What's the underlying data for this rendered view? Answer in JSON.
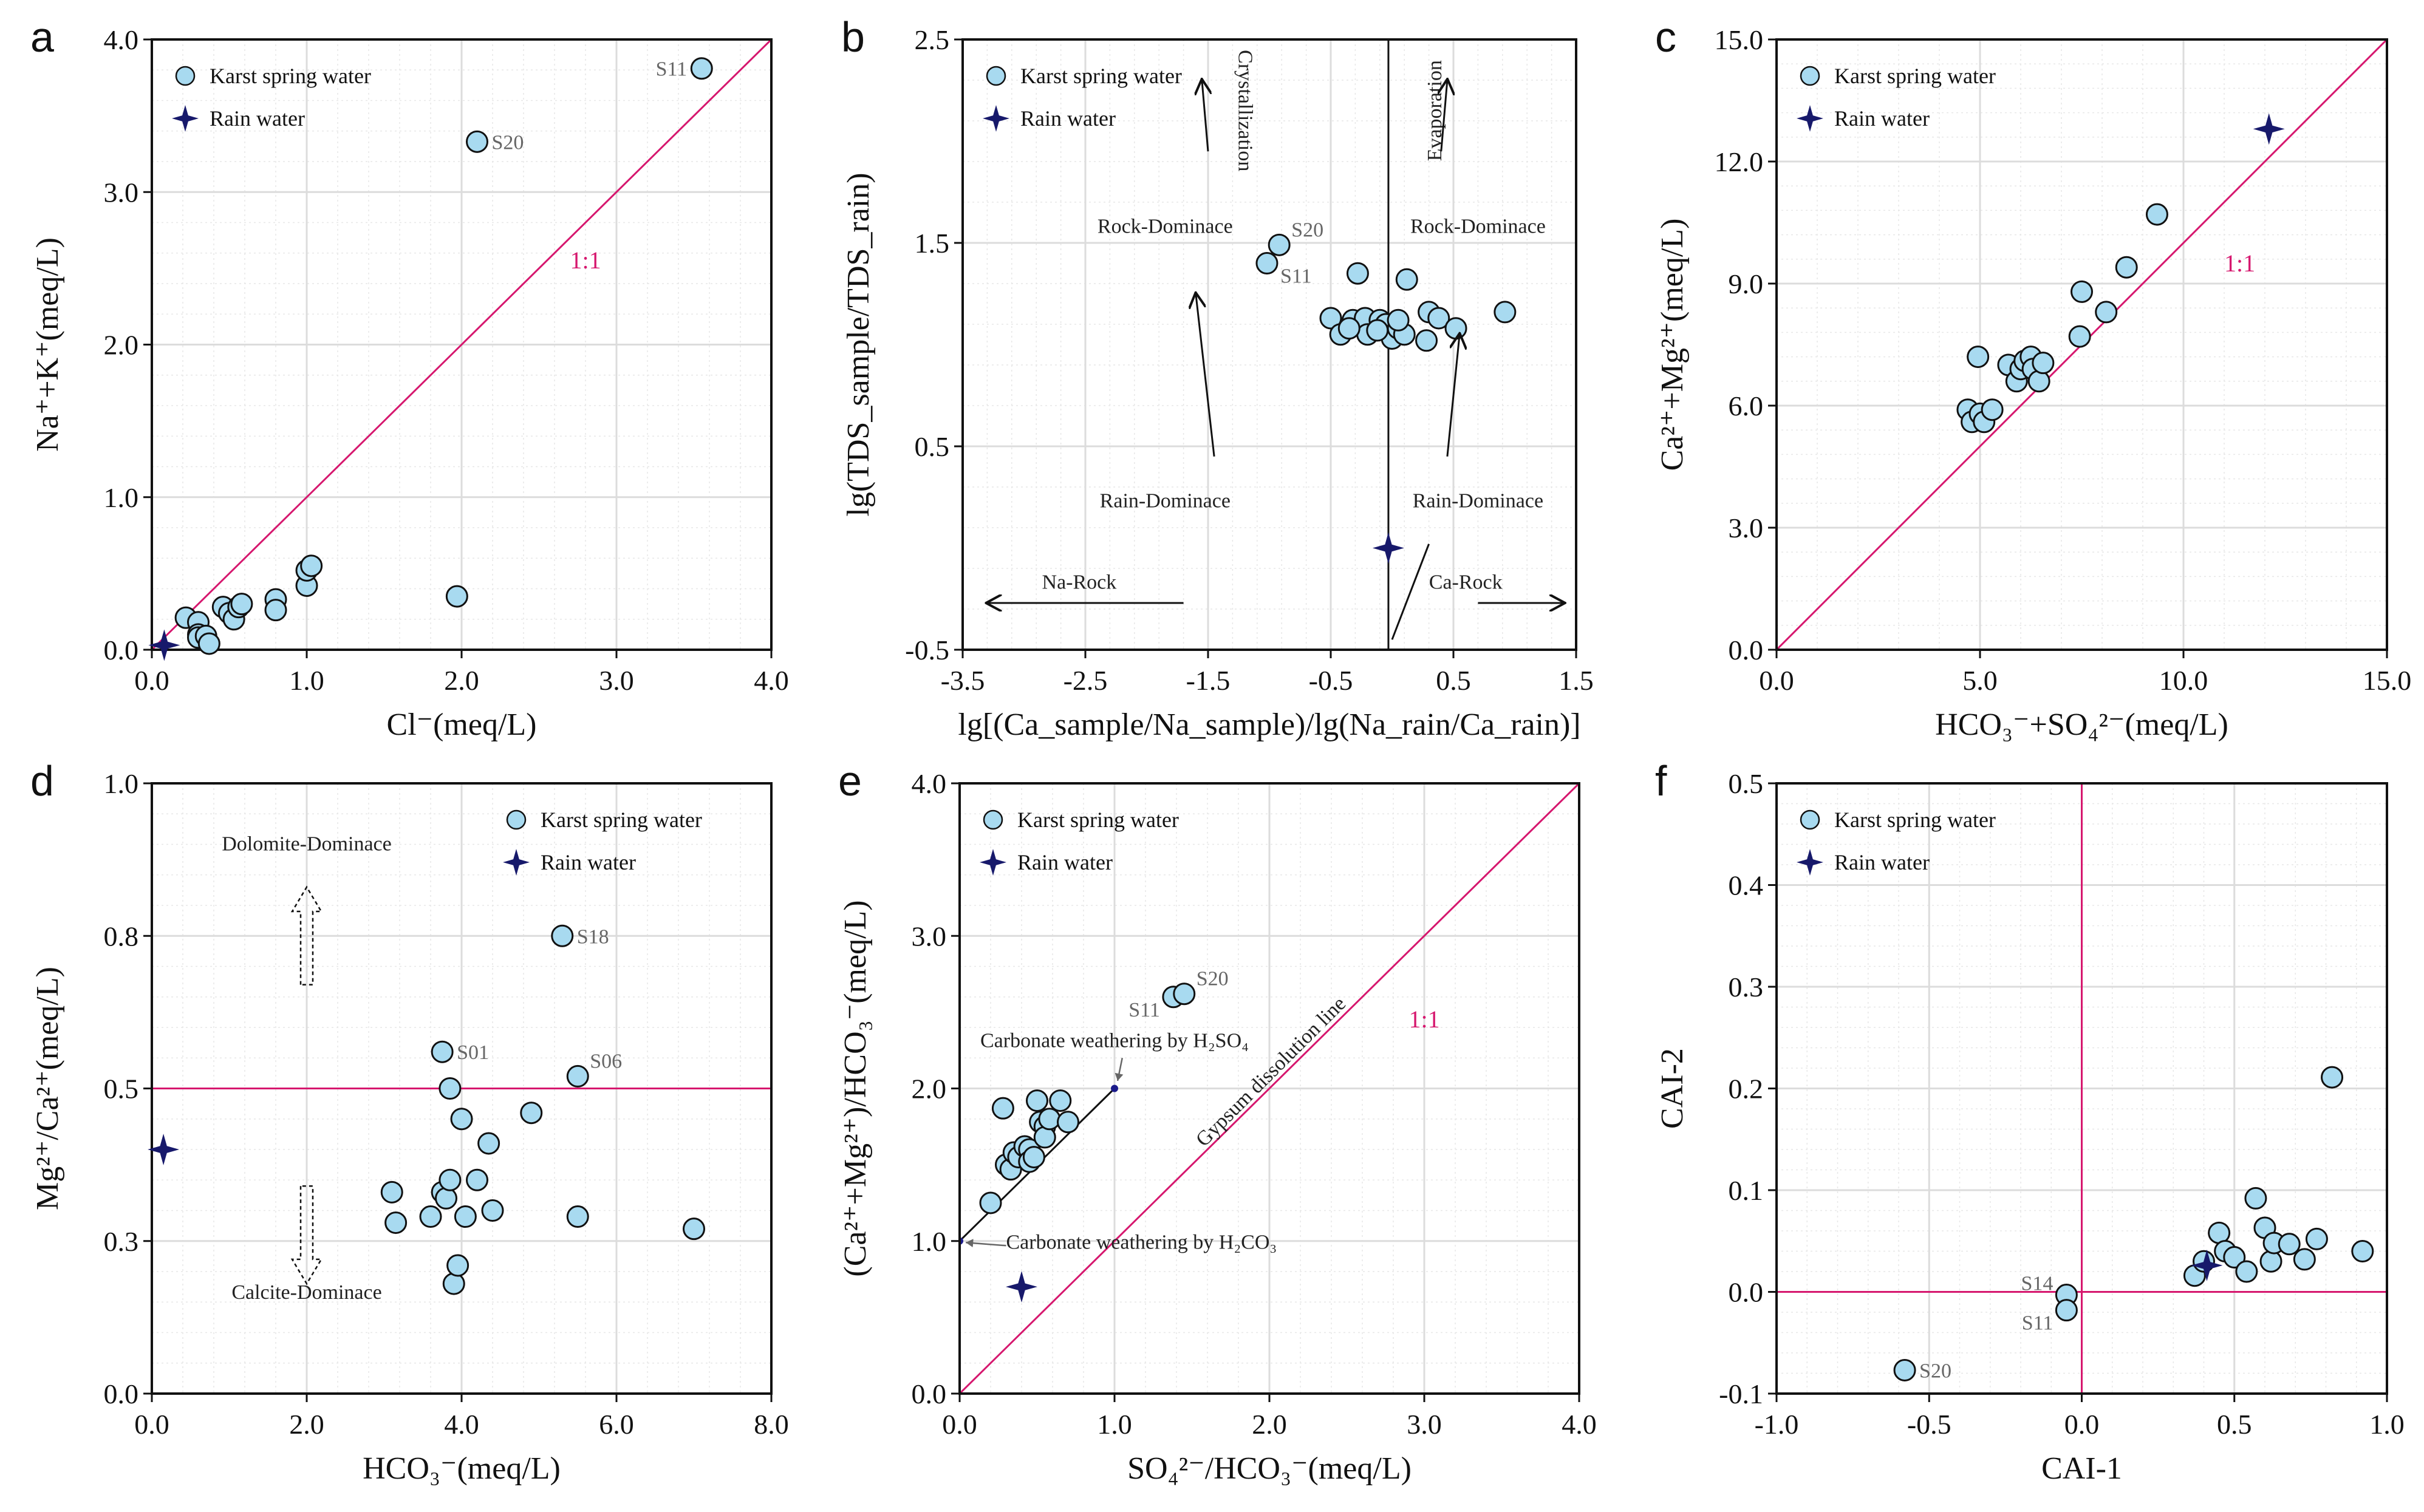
{
  "colors": {
    "spring": "#a8daf0",
    "rain": "#17196b",
    "magenta": "#d6176e",
    "grid": "#dcdcdc"
  },
  "chart_data": [
    {
      "panel": "a",
      "type": "scatter",
      "xlabel": "Cl⁻(meq/L)",
      "ylabel": "Na⁺+K⁺(meq/L)",
      "xlim": [
        0,
        4
      ],
      "ylim": [
        0,
        4
      ],
      "xticks": [
        "0.0",
        "1.0",
        "2.0",
        "3.0",
        "4.0"
      ],
      "yticks": [
        "0.0",
        "1.0",
        "2.0",
        "3.0",
        "4.0"
      ],
      "legend": [
        "Karst spring water",
        "Rain water"
      ],
      "ref_text": "1:1",
      "spring": [
        [
          0.22,
          0.21
        ],
        [
          0.3,
          0.18
        ],
        [
          0.3,
          0.1
        ],
        [
          0.3,
          0.08
        ],
        [
          0.35,
          0.09
        ],
        [
          0.37,
          0.04
        ],
        [
          0.46,
          0.28
        ],
        [
          0.5,
          0.24
        ],
        [
          0.53,
          0.2
        ],
        [
          0.56,
          0.28
        ],
        [
          0.58,
          0.3
        ],
        [
          0.8,
          0.33
        ],
        [
          0.8,
          0.26
        ],
        [
          1.0,
          0.42
        ],
        [
          1.0,
          0.52
        ],
        [
          1.03,
          0.55
        ],
        [
          1.97,
          0.35
        ],
        [
          2.1,
          3.33
        ],
        [
          3.55,
          3.81
        ]
      ],
      "rain": [
        [
          0.08,
          0.03
        ]
      ],
      "labels": [
        {
          "t": "S11",
          "x": 3.55,
          "y": 3.81,
          "side": "left"
        },
        {
          "t": "S20",
          "x": 2.1,
          "y": 3.33,
          "side": "right"
        }
      ]
    },
    {
      "panel": "b",
      "type": "scatter",
      "xlabel": "lg[(Ca_sample/Na_sample)/lg(Na_rain/Ca_rain)]",
      "ylabel": "lg(TDS_sample/TDS_rain)",
      "xlim": [
        -3.5,
        1.5
      ],
      "ylim": [
        -0.5,
        2.5
      ],
      "xticks": [
        "-3.5",
        "-2.5",
        "-1.5",
        "-0.5",
        "0.5",
        "1.5"
      ],
      "yticks": [
        "-0.5",
        "0.5",
        "1.5",
        "2.5"
      ],
      "legend": [
        "Karst spring water",
        "Rain water"
      ],
      "annotations": [
        "Crystallization",
        "Evaporation",
        "Rock-Dominace",
        "Rock-Dominace",
        "Rain-Dominace",
        "Rain-Dominace",
        "Na-Rock",
        "Ca-Rock"
      ],
      "spring": [
        [
          -1.02,
          1.4
        ],
        [
          -0.92,
          1.49
        ],
        [
          -0.28,
          1.35
        ],
        [
          -0.5,
          1.13
        ],
        [
          -0.42,
          1.05
        ],
        [
          -0.32,
          1.12
        ],
        [
          -0.22,
          1.13
        ],
        [
          -0.2,
          1.05
        ],
        [
          -0.1,
          1.12
        ],
        [
          -0.05,
          1.1
        ],
        [
          0.0,
          1.03
        ],
        [
          0.05,
          1.08
        ],
        [
          0.1,
          1.05
        ],
        [
          0.12,
          1.32
        ],
        [
          0.28,
          1.02
        ],
        [
          0.3,
          1.16
        ],
        [
          0.38,
          1.13
        ],
        [
          0.52,
          1.08
        ],
        [
          0.92,
          1.16
        ],
        [
          -0.35,
          1.08
        ],
        [
          0.05,
          1.12
        ],
        [
          -0.12,
          1.07
        ]
      ],
      "rain": [
        [
          -0.03,
          0.0
        ]
      ],
      "labels": [
        {
          "t": "S20",
          "x": -0.92,
          "y": 1.49,
          "side": "upright"
        },
        {
          "t": "S11",
          "x": -1.02,
          "y": 1.4,
          "side": "downright"
        }
      ]
    },
    {
      "panel": "c",
      "type": "scatter",
      "xlabel": "HCO₃⁻+SO₄²⁻(meq/L)",
      "ylabel": "Ca²⁺+Mg²⁺(meq/L)",
      "xlim": [
        0,
        15
      ],
      "ylim": [
        0,
        15
      ],
      "xticks": [
        "0.0",
        "5.0",
        "10.0",
        "15.0"
      ],
      "yticks": [
        "0.0",
        "3.0",
        "6.0",
        "9.0",
        "12.0",
        "15.0"
      ],
      "legend": [
        "Karst spring water",
        "Rain water"
      ],
      "ref_text": "1:1",
      "spring": [
        [
          4.7,
          5.9
        ],
        [
          4.8,
          5.6
        ],
        [
          5.0,
          5.8
        ],
        [
          5.1,
          5.6
        ],
        [
          5.3,
          5.9
        ],
        [
          4.95,
          7.2
        ],
        [
          5.7,
          7.0
        ],
        [
          5.9,
          6.6
        ],
        [
          6.0,
          6.9
        ],
        [
          6.1,
          7.1
        ],
        [
          6.25,
          7.2
        ],
        [
          6.3,
          6.9
        ],
        [
          6.45,
          6.6
        ],
        [
          6.55,
          7.05
        ],
        [
          7.45,
          7.7
        ],
        [
          7.5,
          8.8
        ],
        [
          8.1,
          8.3
        ],
        [
          8.6,
          9.4
        ],
        [
          9.35,
          10.7
        ]
      ],
      "rain": [
        [
          12.1,
          12.8
        ]
      ]
    },
    {
      "panel": "d",
      "type": "scatter",
      "xlabel": "HCO₃⁻(meq/L)",
      "ylabel": "Mg²⁺/Ca²⁺(meq/L)",
      "xlim": [
        0,
        8
      ],
      "ylim": [
        0,
        1
      ],
      "xticks": [
        "0.0",
        "2.0",
        "4.0",
        "6.0",
        "8.0"
      ],
      "yticks": [
        "0.0",
        "0.3",
        "0.5",
        "0.8",
        "1.0"
      ],
      "legend": [
        "Karst spring water",
        "Rain water"
      ],
      "annotations": [
        "Dolomite-Dominace",
        "Calcite-Dominace"
      ],
      "spring": [
        [
          3.1,
          0.33
        ],
        [
          3.15,
          0.28
        ],
        [
          3.6,
          0.29
        ],
        [
          3.75,
          0.33
        ],
        [
          3.75,
          0.56
        ],
        [
          3.8,
          0.32
        ],
        [
          3.85,
          0.35
        ],
        [
          3.85,
          0.5
        ],
        [
          3.9,
          0.18
        ],
        [
          3.95,
          0.21
        ],
        [
          4.0,
          0.45
        ],
        [
          4.05,
          0.29
        ],
        [
          4.2,
          0.35
        ],
        [
          4.35,
          0.41
        ],
        [
          4.4,
          0.3
        ],
        [
          4.9,
          0.46
        ],
        [
          5.3,
          0.75
        ],
        [
          5.5,
          0.52
        ],
        [
          5.5,
          0.29
        ],
        [
          7.0,
          0.27
        ]
      ],
      "rain": [
        [
          0.15,
          0.4
        ]
      ],
      "labels": [
        {
          "t": "S01",
          "x": 3.75,
          "y": 0.56,
          "side": "right"
        },
        {
          "t": "S18",
          "x": 5.3,
          "y": 0.75,
          "side": "right"
        },
        {
          "t": "S06",
          "x": 5.5,
          "y": 0.52,
          "side": "upright"
        }
      ]
    },
    {
      "panel": "e",
      "type": "scatter",
      "xlabel": "SO₄²⁻/HCO₃⁻(meq/L)",
      "ylabel": "(Ca²⁺+Mg²⁺)/HCO₃⁻(meq/L)",
      "xlim": [
        0,
        4
      ],
      "ylim": [
        0,
        4
      ],
      "xticks": [
        "0.0",
        "1.0",
        "2.0",
        "3.0",
        "4.0"
      ],
      "yticks": [
        "0.0",
        "1.0",
        "2.0",
        "3.0",
        "4.0"
      ],
      "legend": [
        "Karst spring water",
        "Rain water"
      ],
      "ref_text": "1:1",
      "annotations": [
        "Gypsum dissolution line",
        "Carbonate weathering by H₂SO₄",
        "Carbonate weathering by H₂CO₃"
      ],
      "spring": [
        [
          0.2,
          1.25
        ],
        [
          0.28,
          1.87
        ],
        [
          0.3,
          1.5
        ],
        [
          0.33,
          1.47
        ],
        [
          0.35,
          1.58
        ],
        [
          0.38,
          1.55
        ],
        [
          0.42,
          1.62
        ],
        [
          0.45,
          1.6
        ],
        [
          0.45,
          1.52
        ],
        [
          0.48,
          1.55
        ],
        [
          0.5,
          1.92
        ],
        [
          0.52,
          1.78
        ],
        [
          0.55,
          1.75
        ],
        [
          0.55,
          1.68
        ],
        [
          0.58,
          1.8
        ],
        [
          0.65,
          1.92
        ],
        [
          0.7,
          1.78
        ],
        [
          1.38,
          2.6
        ],
        [
          1.45,
          2.62
        ]
      ],
      "rain": [
        [
          0.4,
          0.7
        ]
      ],
      "labels": [
        {
          "t": "S11",
          "x": 1.38,
          "y": 2.6,
          "side": "downleft"
        },
        {
          "t": "S20",
          "x": 1.45,
          "y": 2.62,
          "side": "upright"
        }
      ]
    },
    {
      "panel": "f",
      "type": "scatter",
      "xlabel": "CAI-1",
      "ylabel": "CAI-2",
      "xlim": [
        -1.0,
        1.0
      ],
      "ylim": [
        -0.1,
        0.5
      ],
      "xticks": [
        "-1.0",
        "-0.5",
        "0.0",
        "0.5",
        "1.0"
      ],
      "yticks": [
        "-0.1",
        "0.0",
        "0.1",
        "0.2",
        "0.3",
        "0.4",
        "0.5"
      ],
      "legend": [
        "Karst spring water",
        "Rain water"
      ],
      "spring": [
        [
          -0.58,
          -0.077
        ],
        [
          -0.05,
          -0.003
        ],
        [
          -0.05,
          -0.018
        ],
        [
          0.37,
          0.016
        ],
        [
          0.4,
          0.03
        ],
        [
          0.45,
          0.058
        ],
        [
          0.47,
          0.04
        ],
        [
          0.5,
          0.034
        ],
        [
          0.54,
          0.02
        ],
        [
          0.57,
          0.092
        ],
        [
          0.6,
          0.063
        ],
        [
          0.62,
          0.03
        ],
        [
          0.63,
          0.048
        ],
        [
          0.68,
          0.047
        ],
        [
          0.73,
          0.032
        ],
        [
          0.77,
          0.052
        ],
        [
          0.82,
          0.211
        ],
        [
          0.92,
          0.04
        ]
      ],
      "rain": [
        [
          0.41,
          0.026
        ]
      ],
      "labels": [
        {
          "t": "S20",
          "x": -0.58,
          "y": -0.077,
          "side": "right"
        },
        {
          "t": "S14",
          "x": -0.05,
          "y": -0.003,
          "side": "upleft"
        },
        {
          "t": "S11",
          "x": -0.05,
          "y": -0.018,
          "side": "downleft"
        }
      ]
    }
  ]
}
